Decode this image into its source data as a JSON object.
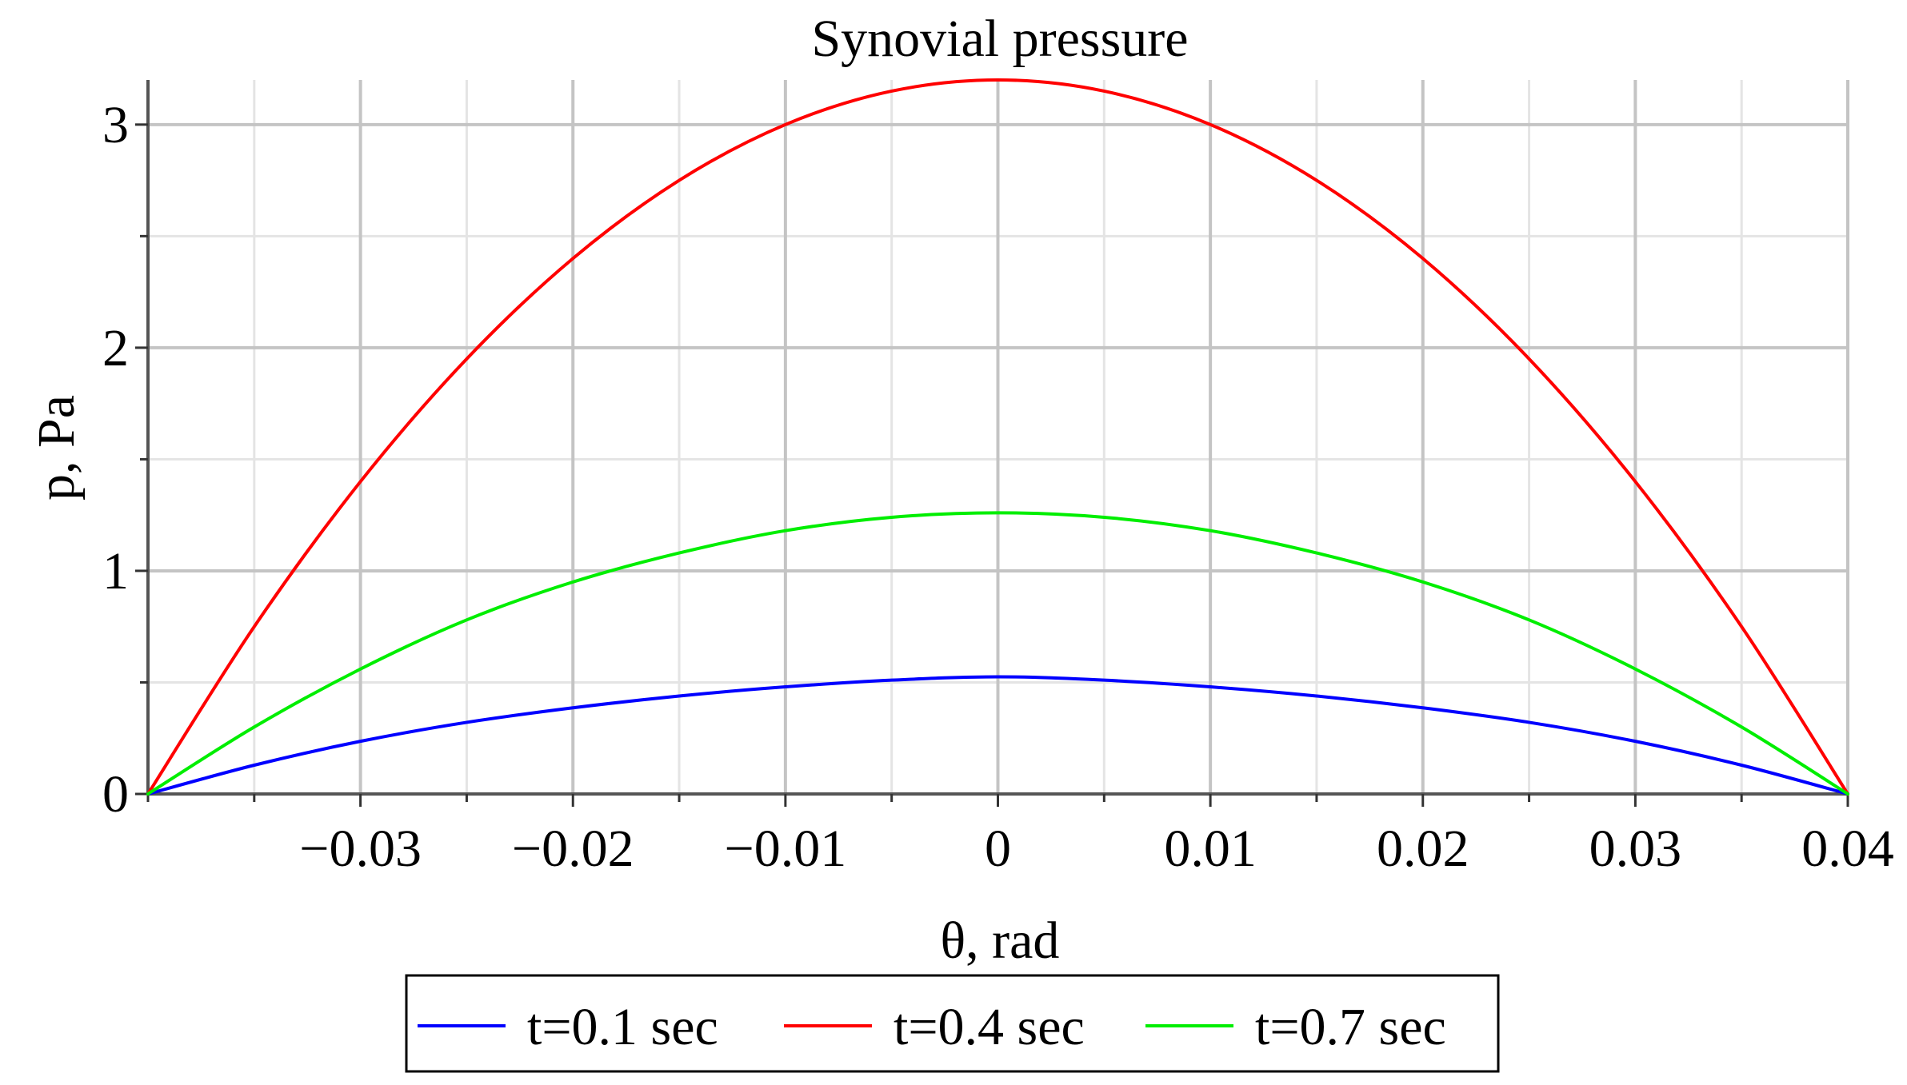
{
  "chart_data": {
    "type": "line",
    "title": "Synovial pressure",
    "xlabel": "θ, rad",
    "ylabel": "p, Pa",
    "xlim": [
      -0.04,
      0.04
    ],
    "ylim": [
      0,
      3.2
    ],
    "grid": true,
    "legend_position": "bottom",
    "x_ticks": [
      {
        "value": -0.03,
        "label": "−0.03"
      },
      {
        "value": -0.02,
        "label": "−0.02"
      },
      {
        "value": -0.01,
        "label": "−0.01"
      },
      {
        "value": 0,
        "label": "0"
      },
      {
        "value": 0.01,
        "label": "0.01"
      },
      {
        "value": 0.02,
        "label": "0.02"
      },
      {
        "value": 0.03,
        "label": "0.03"
      },
      {
        "value": 0.04,
        "label": "0.04"
      }
    ],
    "y_ticks": [
      {
        "value": 0,
        "label": "0"
      },
      {
        "value": 1,
        "label": "1"
      },
      {
        "value": 2,
        "label": "2"
      },
      {
        "value": 3,
        "label": "3"
      }
    ],
    "x_minor_step": 0.005,
    "y_minor_step": 0.5,
    "series": [
      {
        "name": "t=0.1 sec",
        "color": "#0000ff",
        "x": [
          -0.04,
          -0.035,
          -0.03,
          -0.025,
          -0.02,
          -0.015,
          -0.01,
          -0.005,
          0,
          0.005,
          0.01,
          0.015,
          0.02,
          0.025,
          0.03,
          0.035,
          0.04
        ],
        "y": [
          0,
          0.129,
          0.236,
          0.321,
          0.386,
          0.439,
          0.48,
          0.51,
          0.525,
          0.51,
          0.48,
          0.439,
          0.386,
          0.321,
          0.236,
          0.129,
          0
        ]
      },
      {
        "name": "t=0.4 sec",
        "color": "#ff0000",
        "x": [
          -0.04,
          -0.035,
          -0.03,
          -0.025,
          -0.02,
          -0.015,
          -0.01,
          -0.005,
          0,
          0.005,
          0.01,
          0.015,
          0.02,
          0.025,
          0.03,
          0.035,
          0.04
        ],
        "y": [
          0,
          0.75,
          1.4,
          1.95,
          2.4,
          2.75,
          3.0,
          3.15,
          3.2,
          3.15,
          3.0,
          2.75,
          2.4,
          1.95,
          1.4,
          0.75,
          0
        ]
      },
      {
        "name": "t=0.7 sec",
        "color": "#00ee00",
        "x": [
          -0.04,
          -0.035,
          -0.03,
          -0.025,
          -0.02,
          -0.015,
          -0.01,
          -0.005,
          0,
          0.005,
          0.01,
          0.015,
          0.02,
          0.025,
          0.03,
          0.035,
          0.04
        ],
        "y": [
          0,
          0.3,
          0.56,
          0.78,
          0.95,
          1.08,
          1.18,
          1.24,
          1.26,
          1.24,
          1.18,
          1.08,
          0.95,
          0.78,
          0.56,
          0.3,
          0
        ]
      }
    ]
  }
}
